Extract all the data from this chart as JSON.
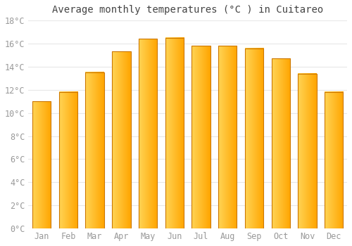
{
  "title": "Average monthly temperatures (°C ) in Cuitareo",
  "months": [
    "Jan",
    "Feb",
    "Mar",
    "Apr",
    "May",
    "Jun",
    "Jul",
    "Aug",
    "Sep",
    "Oct",
    "Nov",
    "Dec"
  ],
  "values": [
    11.0,
    11.8,
    13.5,
    15.3,
    16.4,
    16.5,
    15.8,
    15.8,
    15.6,
    14.7,
    13.4,
    11.8
  ],
  "bar_color_left": "#FFD455",
  "bar_color_right": "#FFA500",
  "bar_edge_color": "#CC7700",
  "ylim": [
    0,
    18
  ],
  "yticks": [
    0,
    2,
    4,
    6,
    8,
    10,
    12,
    14,
    16,
    18
  ],
  "ytick_labels": [
    "0°C",
    "2°C",
    "4°C",
    "6°C",
    "8°C",
    "10°C",
    "12°C",
    "14°C",
    "16°C",
    "18°C"
  ],
  "background_color": "#FFFFFF",
  "grid_color": "#E8E8E8",
  "title_fontsize": 10,
  "tick_fontsize": 8.5,
  "bar_width": 0.7,
  "tick_color": "#999999"
}
